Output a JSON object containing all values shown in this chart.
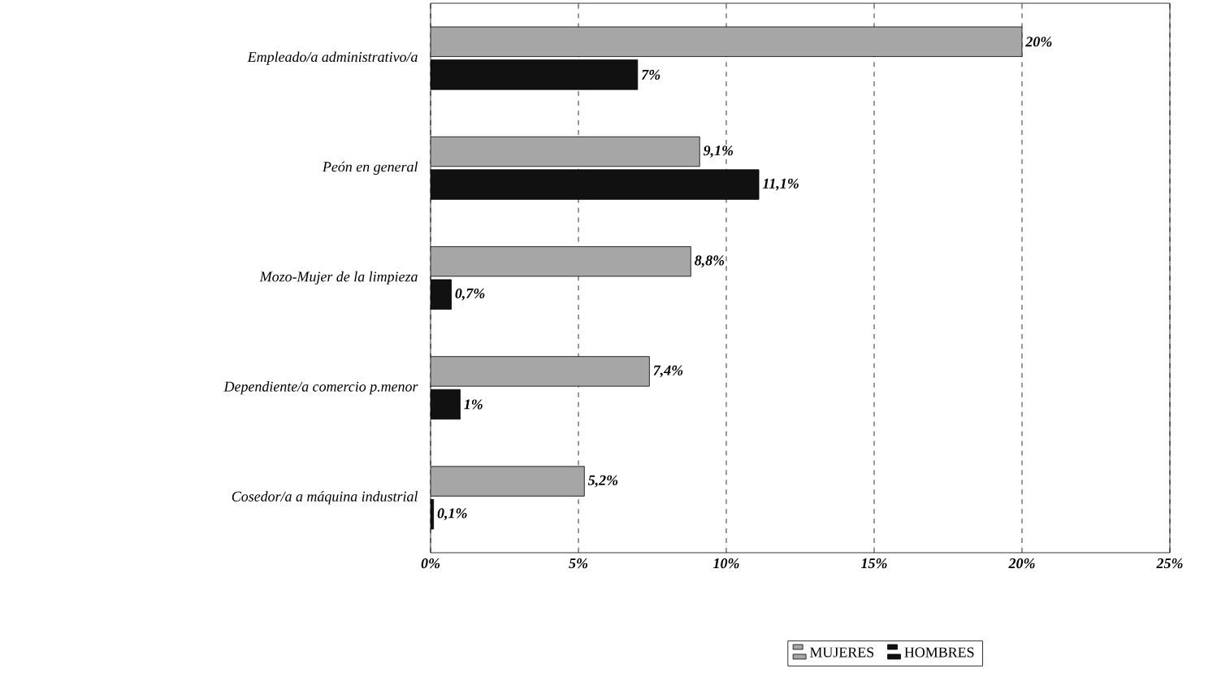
{
  "chart_data": {
    "type": "bar",
    "orientation": "horizontal",
    "categories": [
      "Empleado/a administrativo/a",
      "Peón en general",
      "Mozo-Mujer de la limpieza",
      "Dependiente/a comercio p.menor",
      "Cosedor/a a máquina industrial"
    ],
    "series": [
      {
        "name": "MUJERES",
        "color": "#a6a6a6",
        "values": [
          20,
          9.1,
          8.8,
          7.4,
          5.2
        ],
        "value_labels": [
          "20%",
          "9,1%",
          "8,8%",
          "7,4%",
          "5,2%"
        ]
      },
      {
        "name": "HOMBRES",
        "color": "#111111",
        "values": [
          7,
          11.1,
          0.7,
          1,
          0.1
        ],
        "value_labels": [
          "7%",
          "11,1%",
          "0,7%",
          "1%",
          "0,1%"
        ]
      }
    ],
    "xlim": [
      0,
      25
    ],
    "xticks": [
      {
        "value": 0,
        "label": "0%"
      },
      {
        "value": 5,
        "label": "5%"
      },
      {
        "value": 10,
        "label": "10%"
      },
      {
        "value": 15,
        "label": "15%"
      },
      {
        "value": 20,
        "label": "20%"
      },
      {
        "value": 25,
        "label": "25%"
      }
    ],
    "grid": "x",
    "legend": "bottom"
  }
}
